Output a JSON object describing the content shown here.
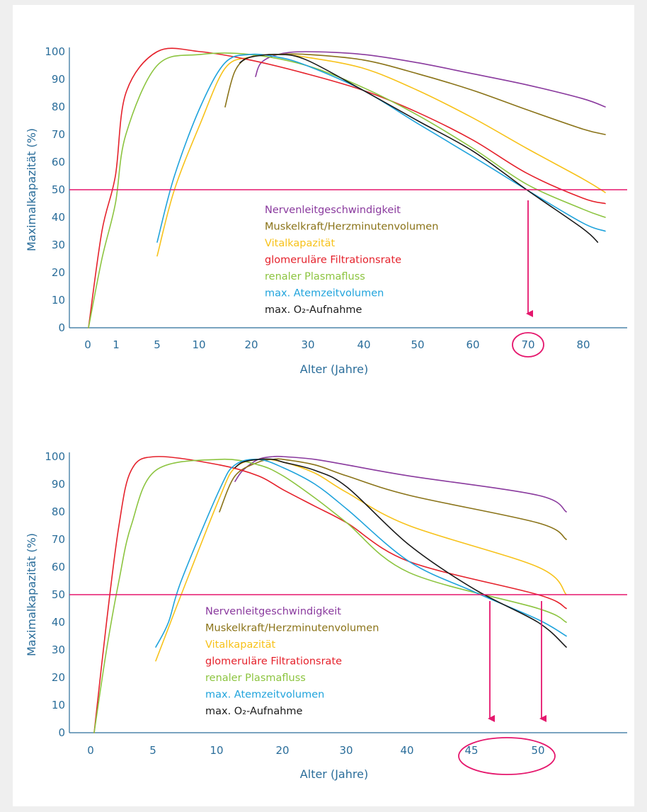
{
  "colors": {
    "axis": "#2a6d9a",
    "threshold": "#e5176d",
    "background": "#efefef",
    "panel": "#ffffff"
  },
  "legend": [
    {
      "label": "Nervenleitgeschwindigkeit",
      "color": "#8a3a9e"
    },
    {
      "label": "Muskelkraft/Herzminutenvolumen",
      "color": "#8a7318"
    },
    {
      "label": "Vitalkapazität",
      "color": "#f7c21a"
    },
    {
      "label": "glomeruläre Filtrationsrate",
      "color": "#e5212b"
    },
    {
      "label": "renaler Plasmafluss",
      "color": "#8cc43f"
    },
    {
      "label": "max. Atemzeitvolumen",
      "color": "#1fa3dc"
    },
    {
      "label": "max. O₂-Aufnahme",
      "color": "#1a1a1a"
    }
  ],
  "chart_data": [
    {
      "type": "line",
      "xlabel": "Alter (Jahre)",
      "ylabel": "Maximalkapazität (%)",
      "ylim": [
        0,
        100
      ],
      "y_ticks": [
        "0",
        "10",
        "20",
        "30",
        "40",
        "50",
        "60",
        "70",
        "80",
        "90",
        "100"
      ],
      "x_ticks": [
        "0",
        "1",
        "5",
        "10",
        "20",
        "30",
        "40",
        "50",
        "60",
        "70",
        "80"
      ],
      "threshold": 50,
      "highlighted_tick": "70",
      "arrows_at": [
        70
      ],
      "series": [
        {
          "name": "Nervenleitgeschwindigkeit",
          "x": [
            21,
            22,
            25,
            30,
            40,
            50,
            60,
            70,
            80,
            83
          ],
          "y": [
            91,
            96,
            99,
            100,
            99,
            96,
            92,
            88,
            83,
            80
          ]
        },
        {
          "name": "Muskelkraft/Herzminutenvolumen",
          "x": [
            15,
            17,
            20,
            25,
            30,
            40,
            50,
            60,
            70,
            80,
            83
          ],
          "y": [
            80,
            93,
            98,
            99,
            99,
            97,
            92,
            86,
            79,
            72,
            70
          ]
        },
        {
          "name": "Vitalkapazität",
          "x": [
            5,
            7,
            10,
            15,
            20,
            25,
            30,
            40,
            50,
            60,
            70,
            80,
            83
          ],
          "y": [
            26,
            50,
            74,
            94,
            98,
            99,
            98,
            94,
            86,
            76,
            65,
            54,
            49
          ]
        },
        {
          "name": "glomeruläre Filtrationsrate",
          "x": [
            0,
            0.5,
            1,
            2,
            5,
            10,
            20,
            30,
            40,
            50,
            60,
            70,
            80,
            83
          ],
          "y": [
            0,
            35,
            55,
            85,
            100,
            100,
            97,
            92,
            86,
            78,
            68,
            56,
            47,
            45
          ]
        },
        {
          "name": "renaler Plasmafluss",
          "x": [
            0,
            0.5,
            1,
            2,
            5,
            10,
            20,
            30,
            40,
            50,
            60,
            70,
            80,
            83
          ],
          "y": [
            0,
            25,
            45,
            70,
            95,
            99,
            99,
            95,
            87,
            77,
            65,
            52,
            43,
            40
          ]
        },
        {
          "name": "max. Atemzeitvolumen",
          "x": [
            5,
            7,
            10,
            15,
            20,
            25,
            30,
            40,
            50,
            60,
            70,
            80,
            83
          ],
          "y": [
            31,
            55,
            80,
            96,
            99,
            98,
            95,
            86,
            74,
            62,
            50,
            38,
            35
          ]
        },
        {
          "name": "max. O₂-Aufnahme",
          "x": [
            18,
            20,
            25,
            30,
            40,
            50,
            60,
            70,
            80,
            82
          ],
          "y": [
            96,
            98,
            99,
            97,
            86,
            75,
            64,
            50,
            36,
            31
          ]
        }
      ]
    },
    {
      "type": "line",
      "xlabel": "Alter (Jahre)",
      "ylabel": "Maximalkapazität (%)",
      "ylim": [
        0,
        100
      ],
      "y_ticks": [
        "0",
        "10",
        "20",
        "30",
        "40",
        "50",
        "60",
        "70",
        "80",
        "90",
        "100"
      ],
      "x_ticks": [
        "0",
        "5",
        "10",
        "20",
        "30",
        "40",
        "45",
        "50"
      ],
      "threshold": 50,
      "highlighted_ticks": [
        "45",
        "50"
      ],
      "arrows_at": [
        45,
        50
      ],
      "series": [
        {
          "name": "Nervenleitgeschwindigkeit",
          "x": [
            12,
            13,
            15,
            18,
            20,
            25,
            30,
            40,
            50,
            55
          ],
          "y": [
            91,
            95,
            99,
            100,
            100,
            99,
            97,
            93,
            86,
            80
          ]
        },
        {
          "name": "Muskelkraft/Herzminutenvolumen",
          "x": [
            10,
            12,
            15,
            18,
            20,
            25,
            30,
            40,
            50,
            55
          ],
          "y": [
            80,
            93,
            98,
            99,
            99,
            97,
            93,
            86,
            76,
            70
          ]
        },
        {
          "name": "Vitalkapazität",
          "x": [
            5,
            6,
            7,
            10,
            12,
            15,
            20,
            25,
            30,
            40,
            50,
            55
          ],
          "y": [
            26,
            38,
            50,
            85,
            96,
            99,
            98,
            94,
            87,
            75,
            60,
            50
          ]
        },
        {
          "name": "glomeruläre Filtrationsrate",
          "x": [
            0,
            1,
            2,
            3,
            5,
            10,
            15,
            20,
            25,
            30,
            40,
            50,
            55
          ],
          "y": [
            0,
            40,
            75,
            95,
            100,
            97,
            93,
            88,
            82,
            76,
            62,
            50,
            45
          ]
        },
        {
          "name": "renaler Plasmafluss",
          "x": [
            0,
            1,
            2,
            3,
            5,
            10,
            15,
            20,
            25,
            30,
            40,
            50,
            55
          ],
          "y": [
            0,
            30,
            55,
            75,
            95,
            99,
            97,
            93,
            85,
            76,
            58,
            45,
            40
          ]
        },
        {
          "name": "max. Atemzeitvolumen",
          "x": [
            5,
            6,
            7,
            10,
            12,
            15,
            20,
            25,
            30,
            40,
            45,
            50,
            55
          ],
          "y": [
            31,
            40,
            55,
            88,
            97,
            99,
            96,
            90,
            81,
            62,
            51,
            41,
            35
          ]
        },
        {
          "name": "max. O₂-Aufnahme",
          "x": [
            12,
            13,
            15,
            18,
            20,
            25,
            30,
            40,
            45,
            50,
            55
          ],
          "y": [
            96,
            98,
            99,
            99,
            98,
            95,
            89,
            68,
            52,
            40,
            31
          ]
        }
      ]
    }
  ]
}
